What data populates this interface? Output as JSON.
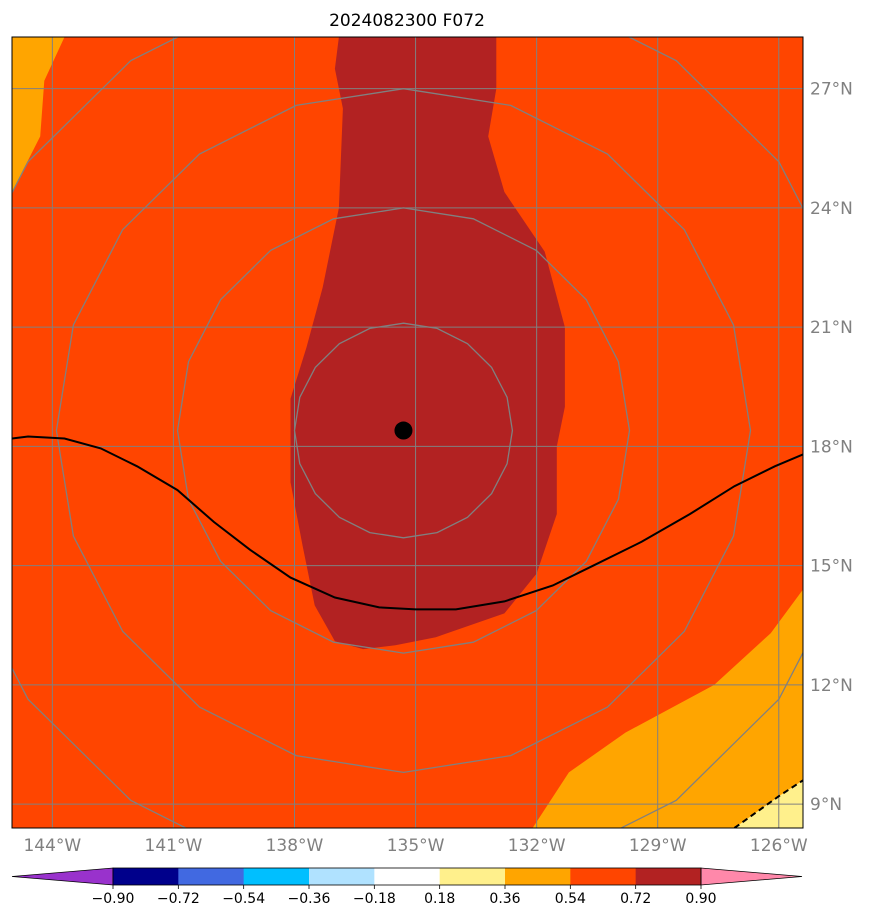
{
  "chart_data": {
    "type": "heatmap",
    "title": "2024082300 F072",
    "map": {
      "projection": "rectilinear",
      "lon_range": [
        -145.0,
        -125.4
      ],
      "lat_range": [
        8.4,
        28.3
      ],
      "lon_ticks": [
        -144,
        -141,
        -138,
        -135,
        -132,
        -129,
        -126
      ],
      "lon_tick_labels": [
        "144°W",
        "141°W",
        "138°W",
        "135°W",
        "132°W",
        "129°W",
        "126°W"
      ],
      "lat_ticks": [
        9,
        12,
        15,
        18,
        21,
        24,
        27
      ],
      "lat_tick_labels": [
        "9°N",
        "12°N",
        "15°N",
        "18°N",
        "21°N",
        "24°N",
        "27°N"
      ],
      "gridlines": true,
      "grid_color": "#808080"
    },
    "storm_center": {
      "lon": -135.3,
      "lat": 18.4,
      "color": "#000000"
    },
    "range_rings_deg": [
      2.7,
      5.6,
      8.6,
      11.5
    ],
    "filled_regions": [
      {
        "level": "0.72-0.90",
        "color": "#b22222",
        "boundary": [
          [
            -136.9,
            28.3
          ],
          [
            -133.0,
            28.3
          ],
          [
            -133.0,
            27.0
          ],
          [
            -133.2,
            25.8
          ],
          [
            -132.8,
            24.4
          ],
          [
            -131.8,
            22.9
          ],
          [
            -131.3,
            21.0
          ],
          [
            -131.3,
            19.0
          ],
          [
            -131.5,
            18.0
          ],
          [
            -131.5,
            16.3
          ],
          [
            -132.0,
            14.8
          ],
          [
            -132.8,
            13.8
          ],
          [
            -134.5,
            13.2
          ],
          [
            -135.5,
            13.0
          ],
          [
            -136.3,
            12.9
          ],
          [
            -137.0,
            13.1
          ],
          [
            -137.5,
            14.0
          ],
          [
            -137.8,
            15.5
          ],
          [
            -138.1,
            17.1
          ],
          [
            -138.1,
            19.2
          ],
          [
            -137.7,
            20.5
          ],
          [
            -137.3,
            22.0
          ],
          [
            -136.9,
            24.0
          ],
          [
            -136.8,
            26.5
          ],
          [
            -137.0,
            27.5
          ]
        ]
      },
      {
        "level": "0.36-0.54",
        "color": "#ffa500",
        "boundary": [
          [
            -145.0,
            28.3
          ],
          [
            -143.7,
            28.3
          ],
          [
            -144.2,
            27.2
          ],
          [
            -144.3,
            25.8
          ],
          [
            -145.0,
            24.4
          ]
        ]
      },
      {
        "level": "0.36-0.54",
        "color": "#ffa500",
        "boundary": [
          [
            -132.1,
            8.4
          ],
          [
            -131.2,
            9.8
          ],
          [
            -129.8,
            10.8
          ],
          [
            -127.6,
            12.0
          ],
          [
            -126.2,
            13.3
          ],
          [
            -125.4,
            14.4
          ],
          [
            -125.4,
            8.4
          ]
        ]
      },
      {
        "level": "0.18-0.36",
        "color": "#fff08c",
        "boundary": [
          [
            -127.1,
            8.4
          ],
          [
            -126.0,
            9.2
          ],
          [
            -125.4,
            9.6
          ],
          [
            -125.4,
            8.4
          ]
        ]
      }
    ],
    "background_level": {
      "level": "0.54-0.72",
      "color": "#ff4500"
    },
    "contour_solid": [
      [
        -145.0,
        18.2
      ],
      [
        -144.6,
        18.25
      ],
      [
        -143.7,
        18.2
      ],
      [
        -142.8,
        17.95
      ],
      [
        -141.9,
        17.5
      ],
      [
        -140.9,
        16.9
      ],
      [
        -140.0,
        16.1
      ],
      [
        -139.1,
        15.4
      ],
      [
        -138.1,
        14.7
      ],
      [
        -137.0,
        14.2
      ],
      [
        -135.9,
        13.95
      ],
      [
        -135.0,
        13.9
      ],
      [
        -134.0,
        13.9
      ],
      [
        -132.8,
        14.1
      ],
      [
        -131.6,
        14.5
      ],
      [
        -130.6,
        15.0
      ],
      [
        -129.4,
        15.6
      ],
      [
        -128.2,
        16.3
      ],
      [
        -127.1,
        17.0
      ],
      [
        -126.1,
        17.5
      ],
      [
        -125.4,
        17.8
      ]
    ],
    "contour_dashed": [
      [
        -127.1,
        8.4
      ],
      [
        -126.0,
        9.2
      ],
      [
        -125.4,
        9.6
      ]
    ],
    "colorbar": {
      "extend": "both",
      "levels": [
        -0.9,
        -0.72,
        -0.54,
        -0.36,
        -0.18,
        0.18,
        0.36,
        0.54,
        0.72,
        0.9
      ],
      "tick_labels": [
        "−0.90",
        "−0.72",
        "−0.54",
        "−0.36",
        "−0.18",
        "0.18",
        "0.36",
        "0.54",
        "0.72",
        "0.90"
      ],
      "colors": [
        "#9932cc",
        "#00008b",
        "#4169e1",
        "#00bfff",
        "#b0e2ff",
        "#ffffff",
        "#fff08c",
        "#ffa500",
        "#ff4500",
        "#b22222",
        "#ff88aa"
      ]
    }
  }
}
